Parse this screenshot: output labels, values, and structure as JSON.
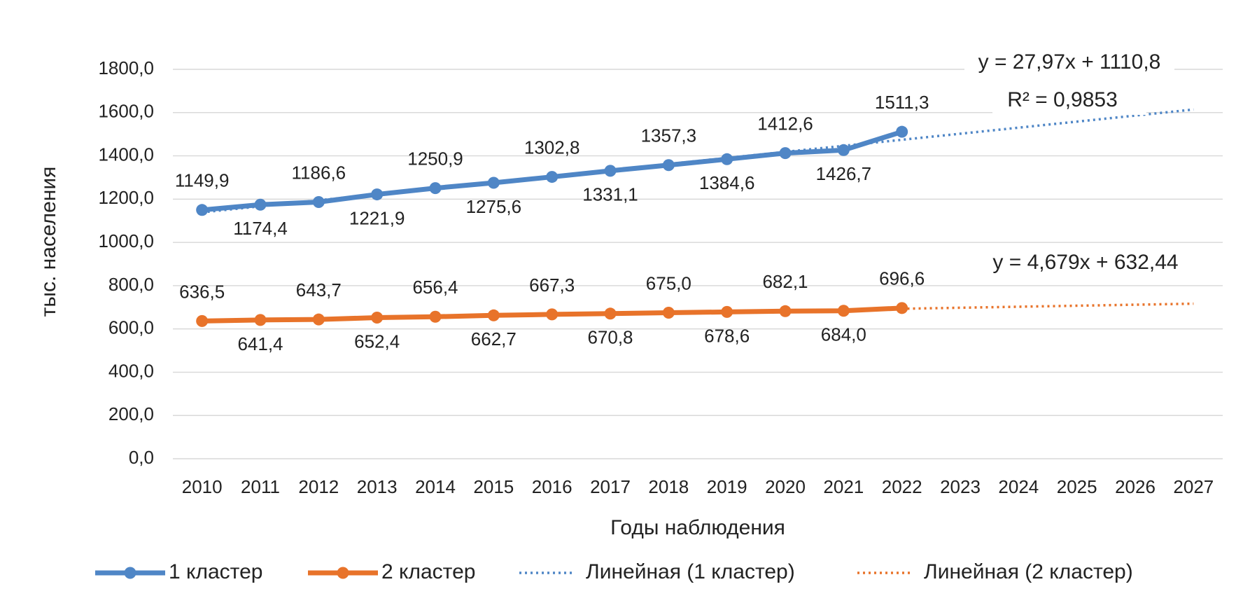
{
  "chart_data": {
    "type": "line",
    "y_label": "тыс. населения",
    "x_label": "Годы наблюдения",
    "categories": [
      "2010",
      "2011",
      "2012",
      "2013",
      "2014",
      "2015",
      "2016",
      "2017",
      "2018",
      "2019",
      "2020",
      "2021",
      "2022",
      "2023",
      "2024",
      "2025",
      "2026",
      "2027"
    ],
    "ylim": [
      0,
      1800
    ],
    "yticks": [
      {
        "value": 0,
        "label": "0,0"
      },
      {
        "value": 200,
        "label": "200,0"
      },
      {
        "value": 400,
        "label": "400,0"
      },
      {
        "value": 600,
        "label": "600,0"
      },
      {
        "value": 800,
        "label": "800,0"
      },
      {
        "value": 1000,
        "label": "1000,0"
      },
      {
        "value": 1200,
        "label": "1200,0"
      },
      {
        "value": 1400,
        "label": "1400,0"
      },
      {
        "value": 1600,
        "label": "1600,0"
      },
      {
        "value": 1800,
        "label": "1800,0"
      }
    ],
    "grid": true,
    "legend": "bottom",
    "series": [
      {
        "name": "1 кластер",
        "color": "#4f86c6",
        "values": [
          1149.9,
          1174.4,
          1186.6,
          1221.9,
          1250.9,
          1275.6,
          1302.8,
          1331.1,
          1357.3,
          1384.6,
          1412.6,
          1426.7,
          1511.3,
          null,
          null,
          null,
          null,
          null
        ],
        "value_labels": [
          "1149,9",
          "1174,4",
          "1186,6",
          "1221,9",
          "1250,9",
          "1275,6",
          "1302,8",
          "1331,1",
          "1357,3",
          "1384,6",
          "1412,6",
          "1426,7",
          "1511,3",
          null,
          null,
          null,
          null,
          null
        ]
      },
      {
        "name": "2 кластер",
        "color": "#e8732a",
        "values": [
          636.5,
          641.4,
          643.7,
          652.4,
          656.4,
          662.7,
          667.3,
          670.8,
          675.0,
          678.6,
          682.1,
          684.0,
          696.6,
          null,
          null,
          null,
          null,
          null
        ],
        "value_labels": [
          "636,5",
          "641,4",
          "643,7",
          "652,4",
          "656,4",
          "662,7",
          "667,3",
          "670,8",
          "675,0",
          "678,6",
          "682,1",
          "684,0",
          "696,6",
          null,
          null,
          null,
          null,
          null
        ]
      },
      {
        "name": "Линейная (1 кластер)",
        "color": "#4f86c6",
        "trend": "linear",
        "slope": 27.97,
        "intercept": 1110.8,
        "equation": "y = 27,97x + 1110,8",
        "r_squared_label": "R² = 0,9853"
      },
      {
        "name": "Линейная (2 кластер)",
        "color": "#e8732a",
        "trend": "linear",
        "slope": 4.679,
        "intercept": 632.44,
        "equation": "y = 4,679x + 632,44"
      }
    ]
  }
}
